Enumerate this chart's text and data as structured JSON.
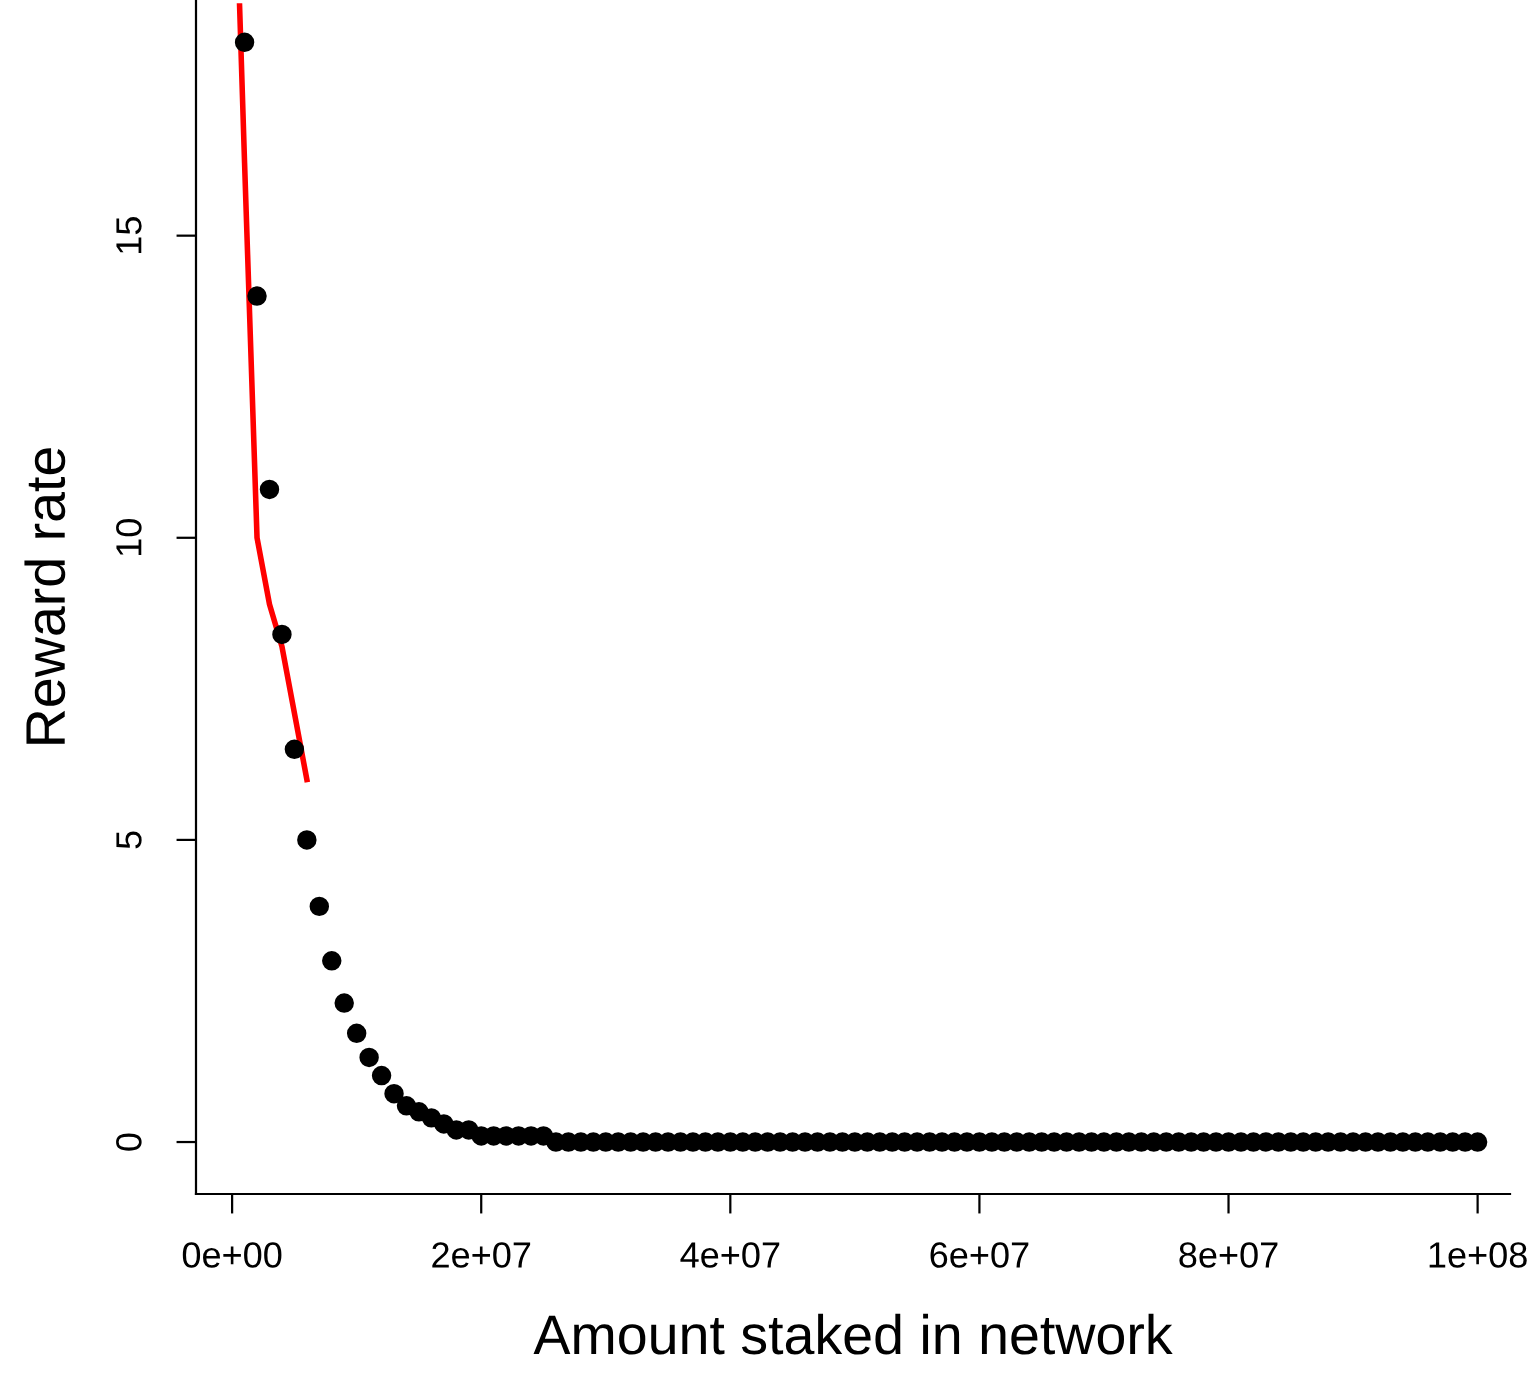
{
  "chart_data": {
    "type": "scatter",
    "xlabel": "Amount staked in network",
    "ylabel": "Reward rate",
    "xlim": [
      -2900000,
      102600000
    ],
    "ylim": [
      -0.86,
      18.9
    ],
    "xticks": [
      {
        "value": 0,
        "label": "0e+00"
      },
      {
        "value": 20000000,
        "label": "2e+07"
      },
      {
        "value": 40000000,
        "label": "4e+07"
      },
      {
        "value": 60000000,
        "label": "6e+07"
      },
      {
        "value": 80000000,
        "label": "8e+07"
      },
      {
        "value": 100000000,
        "label": "1e+08"
      }
    ],
    "yticks": [
      0,
      5,
      10,
      15
    ],
    "series": [
      {
        "color": "#000000",
        "marker": "circle",
        "x": [
          1000000,
          2000000,
          3000000,
          4000000,
          5000000,
          6000000,
          7000000,
          8000000,
          9000000,
          10000000,
          11000000,
          12000000,
          13000000,
          14000000,
          15000000,
          16000000,
          17000000,
          18000000,
          19000000,
          20000000,
          21000000,
          22000000,
          23000000,
          24000000,
          25000000,
          26000000,
          27000000,
          28000000,
          29000000,
          30000000,
          31000000,
          32000000,
          33000000,
          34000000,
          35000000,
          36000000,
          37000000,
          38000000,
          39000000,
          40000000,
          41000000,
          42000000,
          43000000,
          44000000,
          45000000,
          46000000,
          47000000,
          48000000,
          49000000,
          50000000,
          51000000,
          52000000,
          53000000,
          54000000,
          55000000,
          56000000,
          57000000,
          58000000,
          59000000,
          60000000,
          61000000,
          62000000,
          63000000,
          64000000,
          65000000,
          66000000,
          67000000,
          68000000,
          69000000,
          70000000,
          71000000,
          72000000,
          73000000,
          74000000,
          75000000,
          76000000,
          77000000,
          78000000,
          79000000,
          80000000,
          81000000,
          82000000,
          83000000,
          84000000,
          85000000,
          86000000,
          87000000,
          88000000,
          89000000,
          90000000,
          91000000,
          92000000,
          93000000,
          94000000,
          95000000,
          96000000,
          97000000,
          98000000,
          99000000,
          100000000
        ],
        "values": [
          18.2,
          14.0,
          10.8,
          8.4,
          6.5,
          5.0,
          3.9,
          3.0,
          2.3,
          1.8,
          1.4,
          1.1,
          0.8,
          0.6,
          0.5,
          0.4,
          0.3,
          0.2,
          0.2,
          0.1,
          0.1,
          0.1,
          0.1,
          0.1,
          0.1,
          0,
          0,
          0,
          0,
          0,
          0,
          0,
          0,
          0,
          0,
          0,
          0,
          0,
          0,
          0,
          0,
          0,
          0,
          0,
          0,
          0,
          0,
          0,
          0,
          0,
          0,
          0,
          0,
          0,
          0,
          0,
          0,
          0,
          0,
          0,
          0,
          0,
          0,
          0,
          0,
          0,
          0,
          0,
          0,
          0,
          0,
          0,
          0,
          0,
          0,
          0,
          0,
          0,
          0,
          0,
          0,
          0,
          0,
          0,
          0,
          0,
          0,
          0,
          0,
          0,
          0,
          0,
          0,
          0,
          0,
          0,
          0,
          0,
          0,
          0
        ]
      },
      {
        "type": "line",
        "color": "#ff0000",
        "marker": "none",
        "line_style": "solid",
        "x": [
          600000,
          1000000,
          2000000,
          3000000,
          4000000,
          5000000,
          6000000
        ],
        "values": [
          18.8,
          16.2,
          10.0,
          8.9,
          8.2,
          7.1,
          6.0
        ]
      }
    ]
  }
}
